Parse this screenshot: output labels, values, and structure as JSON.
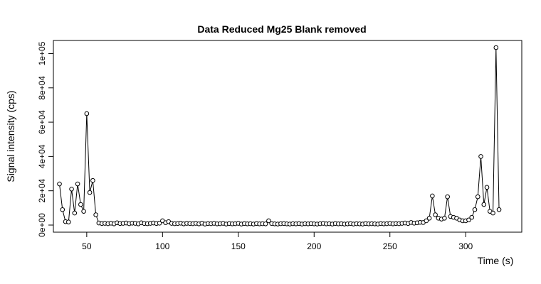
{
  "chart_data": {
    "type": "scatter",
    "title": "Data Reduced Mg25 Blank removed",
    "x_label": "Time (s)",
    "y_label": "Signal intensity (cps)",
    "color": "#000000",
    "xlim": [
      28,
      337
    ],
    "ylim": [
      -4140,
      107640
    ],
    "xticks": [
      50,
      100,
      150,
      200,
      250,
      300
    ],
    "yticks": [
      {
        "value": 0,
        "label": "0e+00"
      },
      {
        "value": 20000,
        "label": "2e+04"
      },
      {
        "value": 40000,
        "label": "4e+04"
      },
      {
        "value": 60000,
        "label": "6e+04"
      },
      {
        "value": 80000,
        "label": "8e+04"
      },
      {
        "value": 100000,
        "label": "1e+05"
      }
    ],
    "x": [
      32,
      34,
      36,
      38,
      40,
      42,
      44,
      46,
      48,
      50,
      52,
      54,
      56,
      58,
      60,
      62,
      64,
      66,
      68,
      70,
      72,
      74,
      76,
      78,
      80,
      82,
      84,
      86,
      88,
      90,
      92,
      94,
      96,
      98,
      100,
      102,
      104,
      106,
      108,
      110,
      112,
      114,
      116,
      118,
      120,
      122,
      124,
      126,
      128,
      130,
      132,
      134,
      136,
      138,
      140,
      142,
      144,
      146,
      148,
      150,
      152,
      154,
      156,
      158,
      160,
      162,
      164,
      166,
      168,
      170,
      172,
      174,
      176,
      178,
      180,
      182,
      184,
      186,
      188,
      190,
      192,
      194,
      196,
      198,
      200,
      202,
      204,
      206,
      208,
      210,
      212,
      214,
      216,
      218,
      220,
      222,
      224,
      226,
      228,
      230,
      232,
      234,
      236,
      238,
      240,
      242,
      244,
      246,
      248,
      250,
      252,
      254,
      256,
      258,
      260,
      262,
      264,
      266,
      268,
      270,
      272,
      274,
      276,
      278,
      280,
      282,
      284,
      286,
      288,
      290,
      292,
      294,
      296,
      298,
      300,
      302,
      304,
      306,
      308,
      310,
      312,
      314,
      316,
      318,
      320,
      322
    ],
    "values": [
      24000,
      9000,
      2000,
      1800,
      21000,
      7000,
      24000,
      12000,
      8000,
      65000,
      19000,
      26000,
      6000,
      1200,
      900,
      1000,
      800,
      1100,
      700,
      1300,
      900,
      1000,
      1200,
      800,
      1100,
      1000,
      700,
      1300,
      900,
      800,
      1000,
      1200,
      900,
      1100,
      2500,
      1400,
      2000,
      1000,
      800,
      900,
      1100,
      700,
      1000,
      900,
      800,
      1000,
      700,
      1100,
      600,
      900,
      800,
      1000,
      700,
      800,
      1000,
      600,
      900,
      700,
      800,
      1000,
      600,
      900,
      700,
      800,
      600,
      900,
      700,
      800,
      700,
      2500,
      900,
      700,
      600,
      800,
      900,
      700,
      600,
      800,
      700,
      900,
      600,
      800,
      700,
      900,
      700,
      600,
      800,
      1000,
      700,
      800,
      600,
      900,
      700,
      800,
      600,
      700,
      900,
      600,
      800,
      700,
      600,
      900,
      700,
      800,
      700,
      600,
      900,
      700,
      800,
      1000,
      700,
      900,
      800,
      1000,
      1200,
      900,
      1500,
      1100,
      1300,
      1600,
      1500,
      2500,
      4000,
      17000,
      6000,
      4000,
      3500,
      4000,
      16500,
      5000,
      4500,
      4000,
      3000,
      2500,
      2500,
      3000,
      4500,
      9000,
      16500,
      40000,
      12000,
      22000,
      8000,
      7000,
      103500,
      9000
    ]
  }
}
